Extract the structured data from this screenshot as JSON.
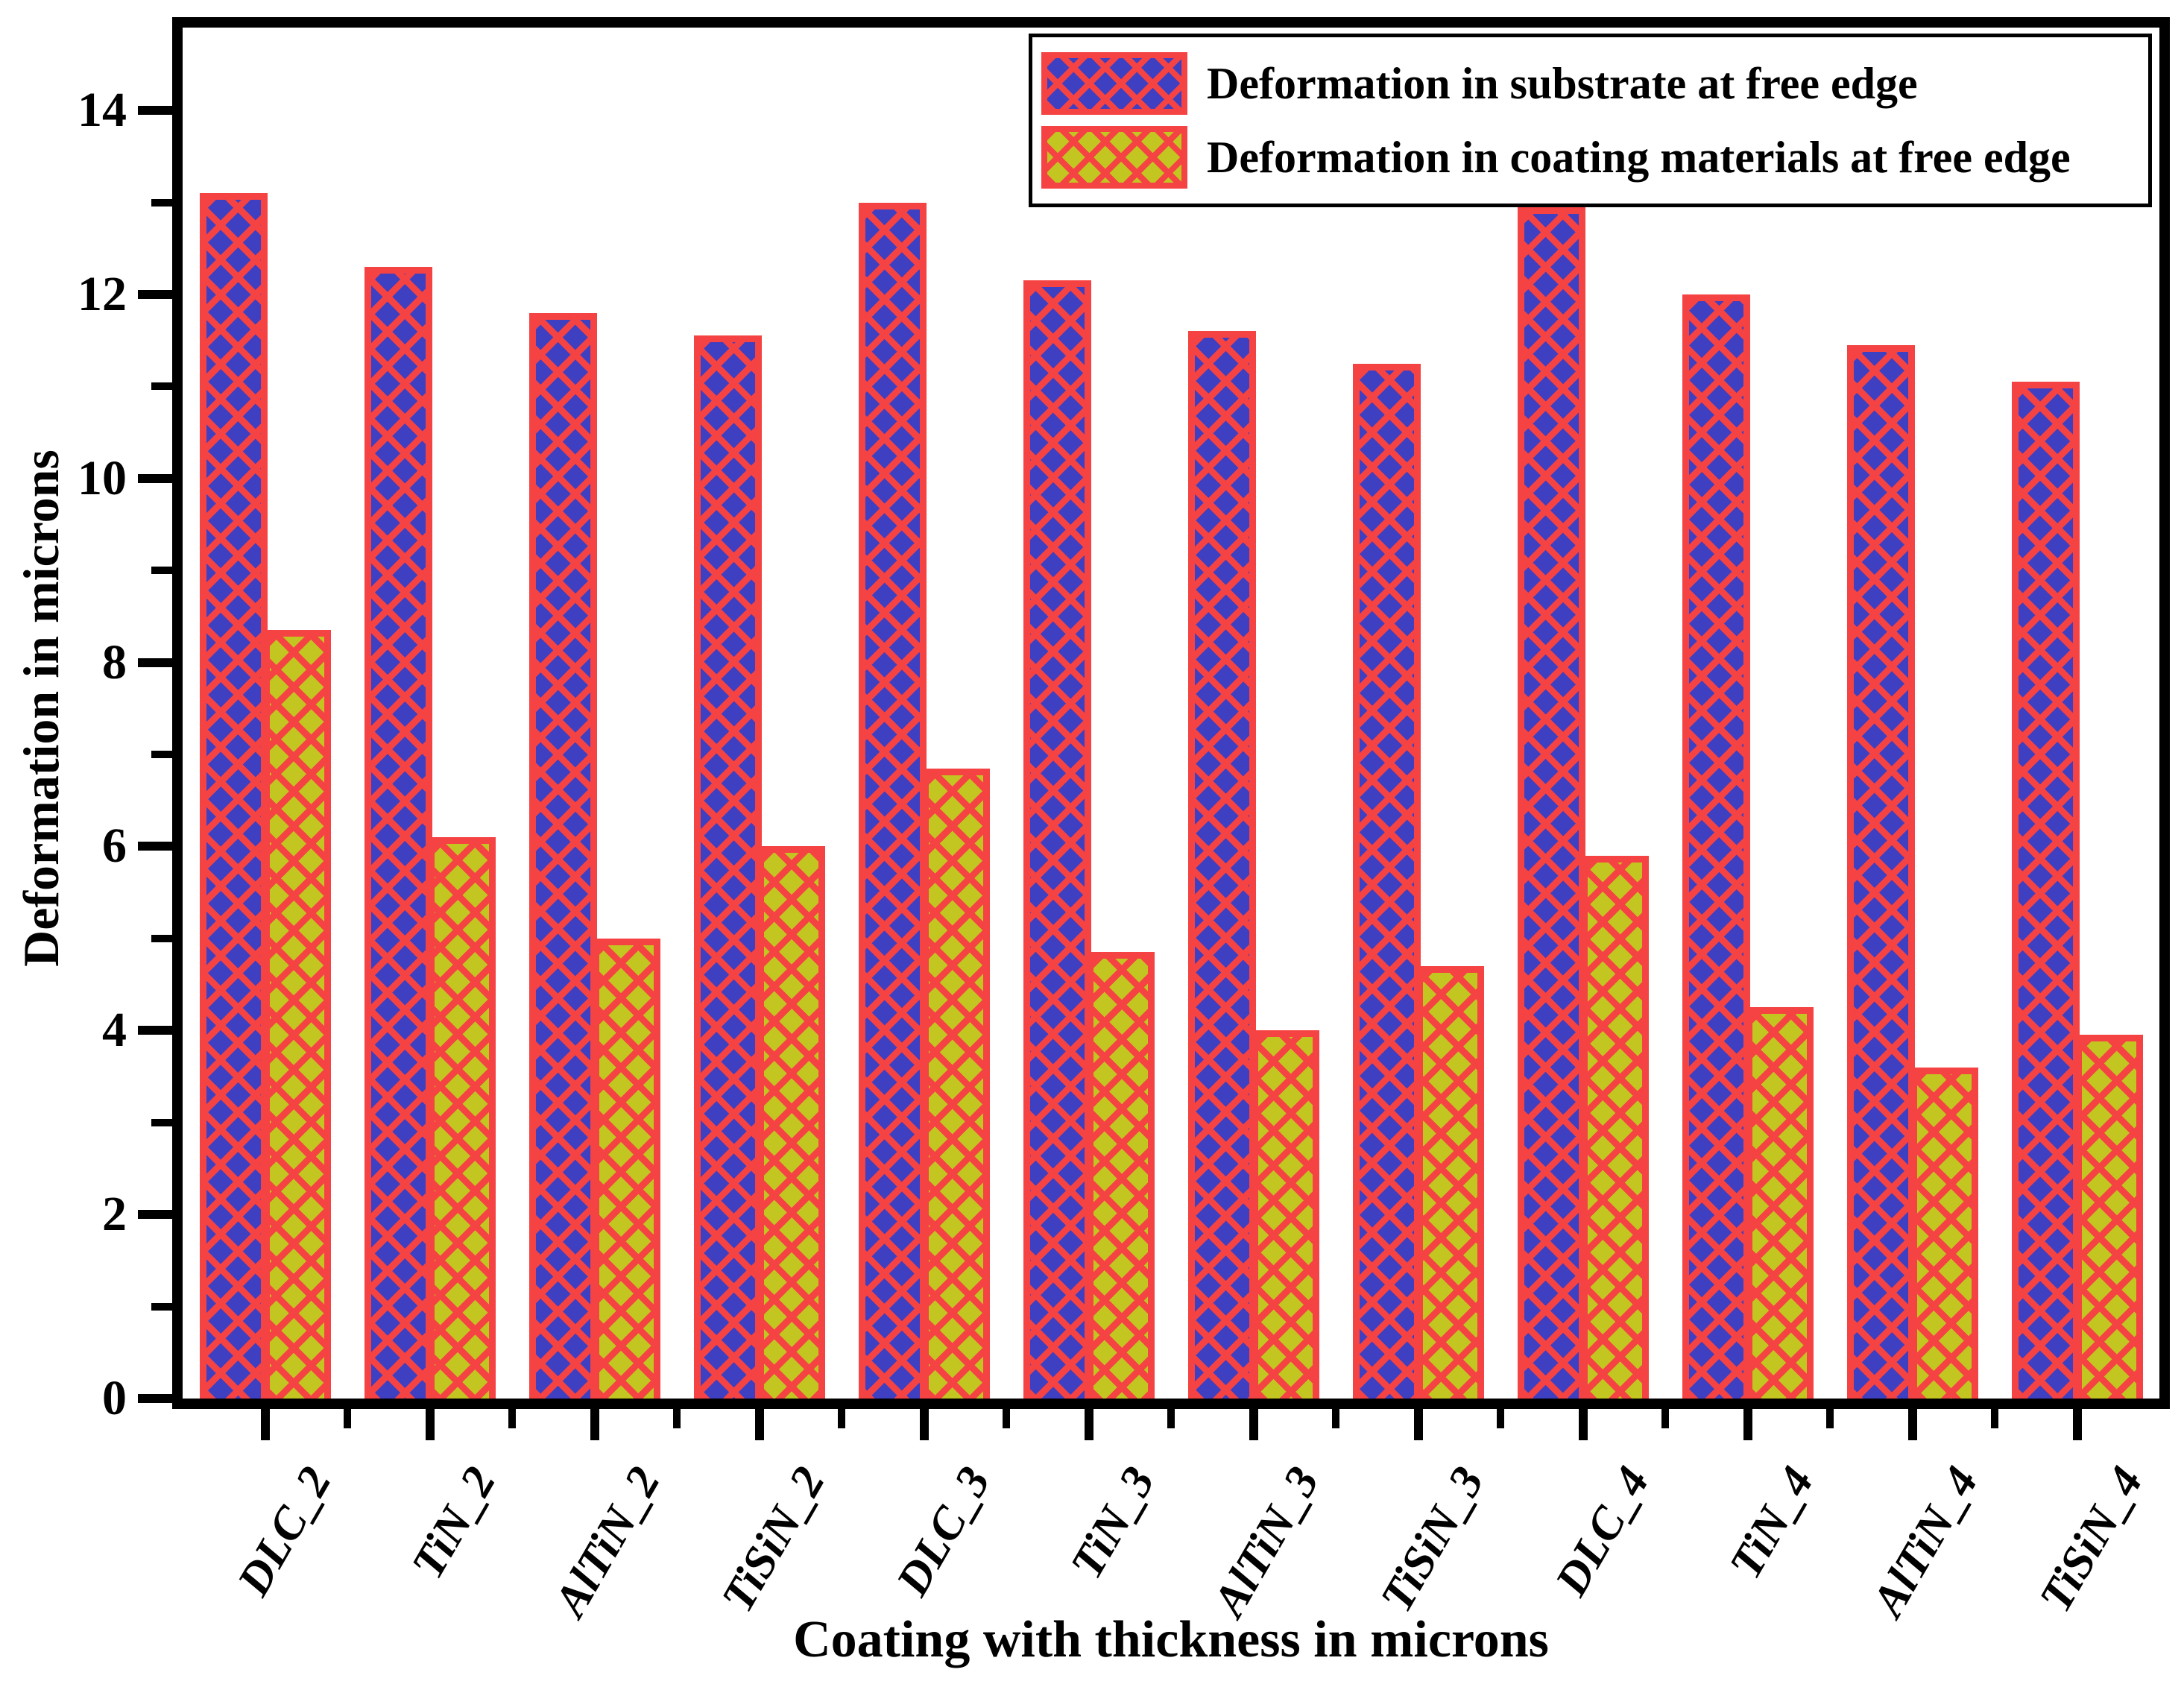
{
  "figure": {
    "background": "#ffffff"
  },
  "colors": {
    "substrate_fill": "#3f3fc1",
    "coating_fill": "#c3c521",
    "hatch_red": "#f54343",
    "frame_black": "#000000"
  },
  "axes": {
    "y_title": "Deformation in microns",
    "x_title": "Coating with thickness in microns",
    "y_major_ticks": [
      0,
      2,
      4,
      6,
      8,
      10,
      12,
      14
    ],
    "y_minor_ticks": [
      1,
      3,
      5,
      7,
      9,
      11,
      13
    ],
    "y_max_displayed": 14.9
  },
  "legend": {
    "items": [
      {
        "label": "Deformation in substrate at free edge",
        "fill_key": "substrate_fill"
      },
      {
        "label": "Deformation in coating materials at free edge",
        "fill_key": "coating_fill"
      }
    ]
  },
  "chart_data": {
    "type": "bar",
    "categories": [
      "DLC_2",
      "TiN_2",
      "AlTiN_2",
      "TiSiN_2",
      "DLC_3",
      "TiN_3",
      "AlTiN_3",
      "TiSiN_3",
      "DLC_4",
      "TiN_4",
      "AlTiN_4",
      "TiSiN_4"
    ],
    "series": [
      {
        "name": "Deformation in substrate at free edge",
        "values": [
          13.1,
          12.3,
          11.8,
          11.55,
          13.0,
          12.15,
          11.6,
          11.25,
          12.95,
          12.0,
          11.45,
          11.05
        ]
      },
      {
        "name": "Deformation in coating materials at free edge",
        "values": [
          8.35,
          6.1,
          5.0,
          6.0,
          6.85,
          4.85,
          4.0,
          4.7,
          5.9,
          4.25,
          3.6,
          3.95
        ]
      }
    ],
    "title": "",
    "xlabel": "Coating with thickness in microns",
    "ylabel": "Deformation in microns",
    "ylim": [
      0,
      14.9
    ],
    "grid": false,
    "legend_position": "top-right",
    "bar_style": "red diagonal crosshatch over series fill color, thick red outline"
  }
}
